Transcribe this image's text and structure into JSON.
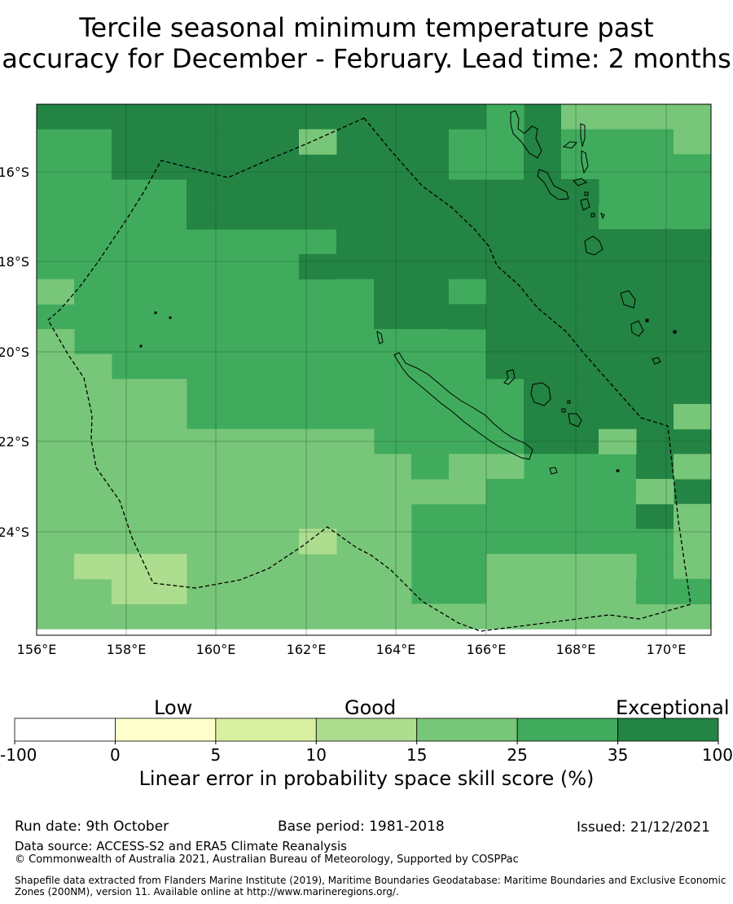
{
  "title": {
    "line1": "Tercile seasonal minimum temperature past",
    "line2": "accuracy for December - February. Lead time: 2 months"
  },
  "map": {
    "lat_labels": [
      "16°S",
      "18°S",
      "20°S",
      "22°S",
      "24°S"
    ],
    "lon_labels": [
      "156°E",
      "158°E",
      "160°E",
      "162°E",
      "164°E",
      "166°E",
      "168°E",
      "170°E"
    ],
    "islands": [
      "Vanuatu",
      "New Caledonia",
      "Loyalty Islands",
      "Chesterfield Islands"
    ],
    "colors": {
      "c0": "#ffffcc",
      "c5": "#d9f0a3",
      "c10": "#addd8e",
      "c15": "#78c679",
      "c25": "#41ab5d",
      "c35": "#238443"
    }
  },
  "colorbar": {
    "categories": [
      "Low",
      "Good",
      "Exceptional"
    ],
    "ticks": [
      "-100",
      "0",
      "5",
      "10",
      "15",
      "25",
      "35",
      "100"
    ],
    "bins": [
      {
        "range": "-100 to 0",
        "color": "#ffffff"
      },
      {
        "range": "0 to 5",
        "color": "#ffffcc"
      },
      {
        "range": "5 to 10",
        "color": "#d9f0a3"
      },
      {
        "range": "10 to 15",
        "color": "#addd8e"
      },
      {
        "range": "15 to 25",
        "color": "#78c679"
      },
      {
        "range": "25 to 35",
        "color": "#41ab5d"
      },
      {
        "range": "35 to 100",
        "color": "#238443"
      }
    ],
    "label": "Linear error in probability space skill score (%)"
  },
  "footer": {
    "run_date": "Run date: 9th October",
    "base_period": "Base period: 1981-2018",
    "issued": "Issued: 21/12/2021",
    "data_source": "Data source: ACCESS-S2 and ERA5 Climate Reanalysis",
    "copyright": "© Commonwealth of Australia 2021, Australian Bureau of Meteorology, Supported by COSPPac",
    "shapefile": "Shapefile data extracted from Flanders Marine Institute (2019), Maritime Boundaries Geodatabase: Maritime Boundaries and Exclusive Economic Zones (200NM), version 11. Available online at http://www.marineregions.org/."
  }
}
